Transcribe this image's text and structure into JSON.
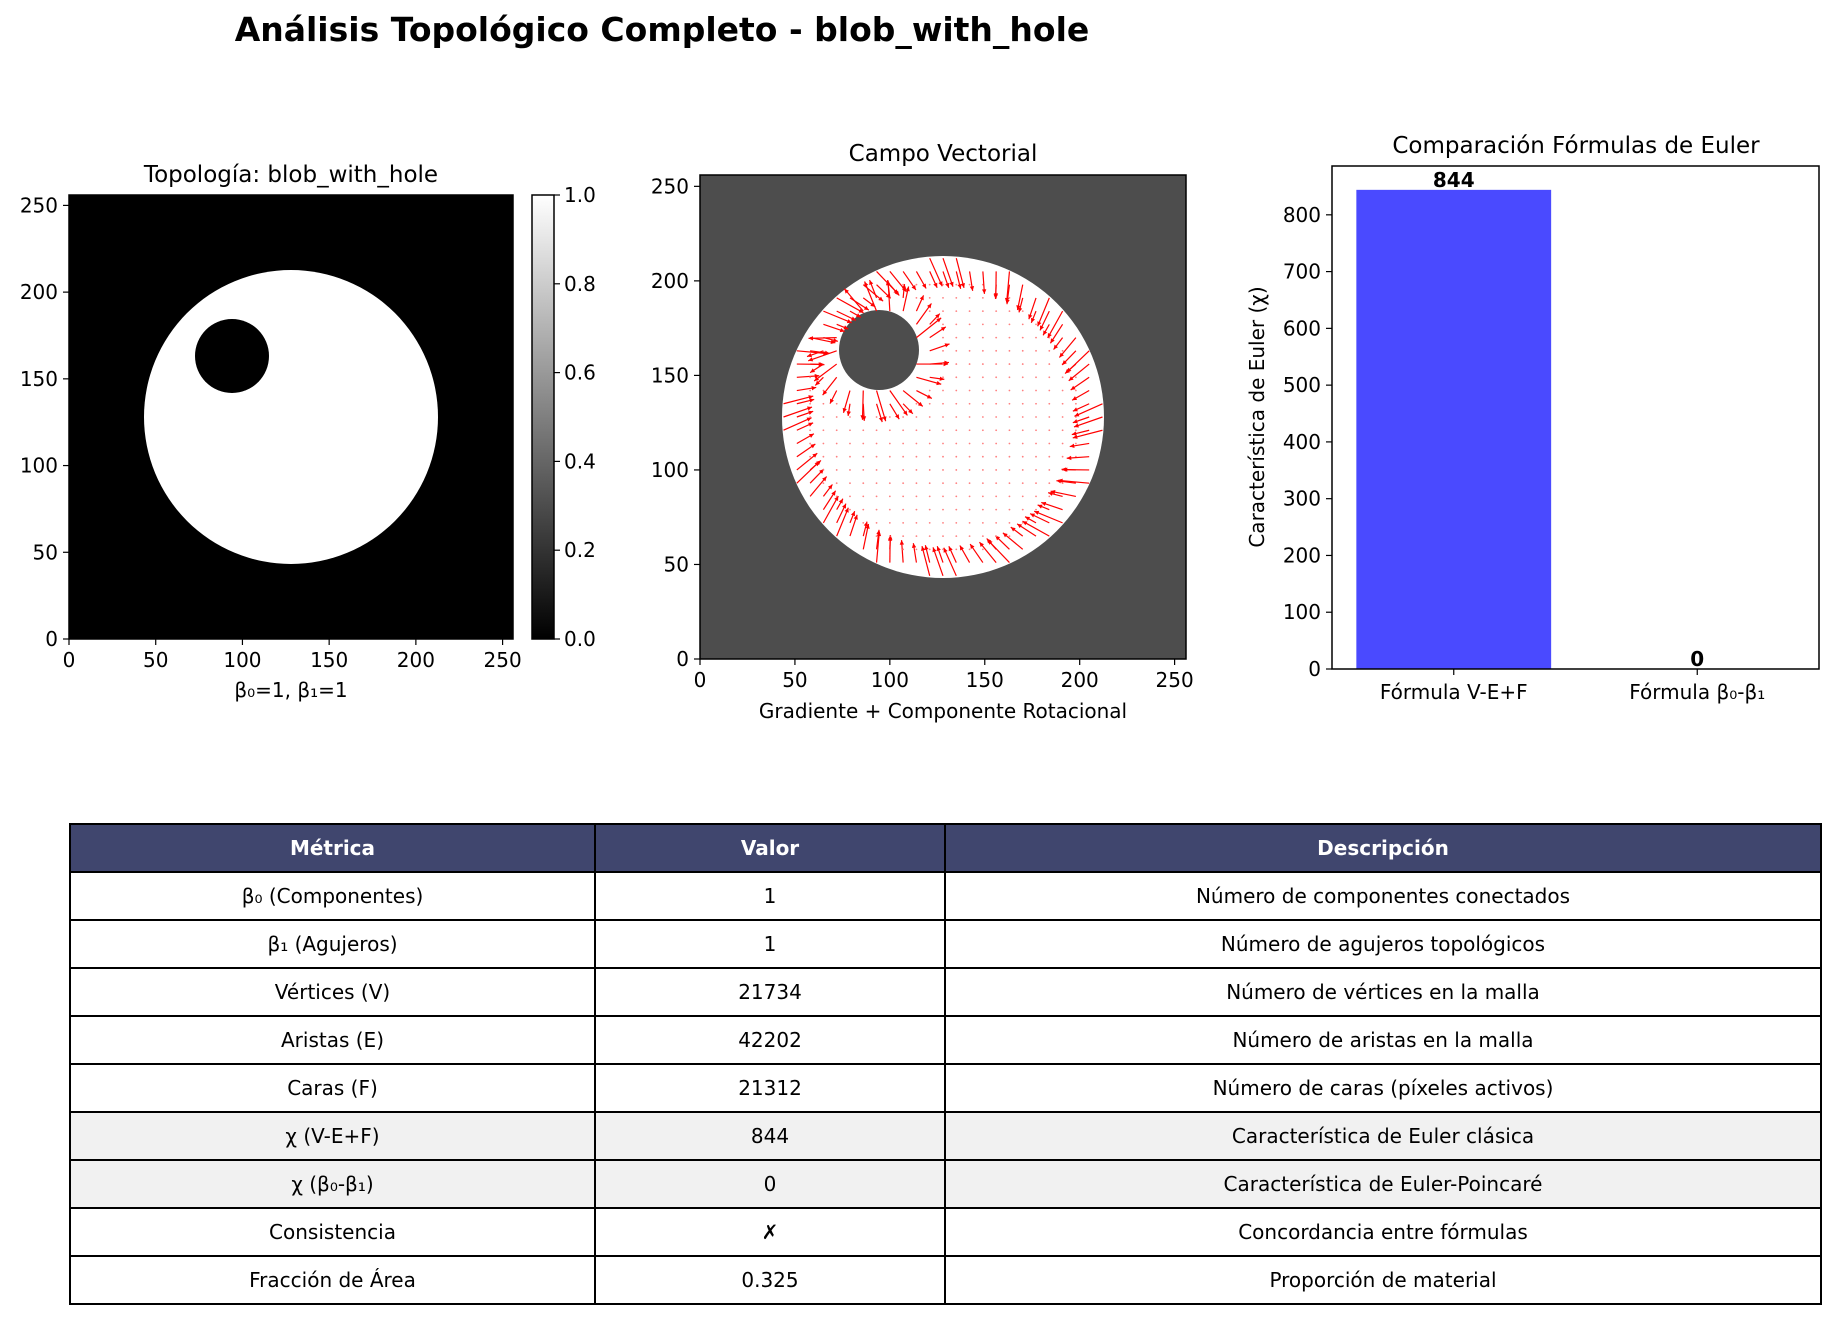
{
  "title": "Análisis Topológico Completo - blob_with_hole",
  "panel1": {
    "title": "Topología: blob_with_hole",
    "xlabel": "β₀=1, β₁=1",
    "xticks": [
      "0",
      "50",
      "100",
      "150",
      "200",
      "250"
    ],
    "yticks": [
      "0",
      "50",
      "100",
      "150",
      "200",
      "250"
    ],
    "colorbar_ticks": [
      "0.0",
      "0.2",
      "0.4",
      "0.6",
      "0.8",
      "1.0"
    ]
  },
  "panel2": {
    "title": "Campo Vectorial",
    "xlabel": "Gradiente + Componente Rotacional",
    "xticks": [
      "0",
      "50",
      "100",
      "150",
      "200",
      "250"
    ],
    "yticks": [
      "0",
      "50",
      "100",
      "150",
      "200",
      "250"
    ]
  },
  "chart_data": [
    {
      "type": "heatmap",
      "title": "Topología: blob_with_hole",
      "xlabel": "β₀=1, β₁=1",
      "xlim": [
        0,
        256
      ],
      "ylim": [
        0,
        256
      ],
      "colormap": "gray",
      "colorbar_range": [
        0.0,
        1.0
      ],
      "shapes": [
        {
          "kind": "disk",
          "value": 1,
          "center": [
            128,
            128
          ],
          "radius": 85
        },
        {
          "kind": "hole",
          "value": 0,
          "center": [
            94,
            163
          ],
          "radius": 21
        }
      ]
    },
    {
      "type": "quiver",
      "title": "Campo Vectorial",
      "xlabel": "Gradiente + Componente Rotacional",
      "xlim": [
        0,
        256
      ],
      "ylim": [
        0,
        256
      ],
      "arrow_color": "#ff0000"
    },
    {
      "type": "bar",
      "title": "Comparación Fórmulas de Euler",
      "categories": [
        "Fórmula V-E+F",
        "Fórmula β₀-β₁"
      ],
      "values": [
        844,
        0
      ],
      "value_labels": [
        "844",
        "0"
      ],
      "xlabel": "",
      "ylabel": "Característica de Euler (χ)",
      "ylim": [
        0,
        886
      ],
      "yticks": [
        0,
        100,
        200,
        300,
        400,
        500,
        600,
        700,
        800
      ],
      "colors": [
        "#4a4aff",
        "#ff4a4a"
      ]
    }
  ],
  "table": {
    "headers": [
      "Métrica",
      "Valor",
      "Descripción"
    ],
    "rows": [
      [
        "β₀ (Componentes)",
        "1",
        "Número de componentes conectados"
      ],
      [
        "β₁ (Agujeros)",
        "1",
        "Número de agujeros topológicos"
      ],
      [
        "Vértices (V)",
        "21734",
        "Número de vértices en la malla"
      ],
      [
        "Aristas (E)",
        "42202",
        "Número de aristas en la malla"
      ],
      [
        "Caras (F)",
        "21312",
        "Número de caras (píxeles activos)"
      ],
      [
        "χ (V-E+F)",
        "844",
        "Característica de Euler clásica"
      ],
      [
        "χ (β₀-β₁)",
        "0",
        "Característica de Euler-Poincaré"
      ],
      [
        "Consistencia",
        "✗",
        "Concordancia entre fórmulas"
      ],
      [
        "Fracción de Área",
        "0.325",
        "Proporción de material"
      ]
    ],
    "highlight_rows": [
      5,
      6
    ]
  }
}
